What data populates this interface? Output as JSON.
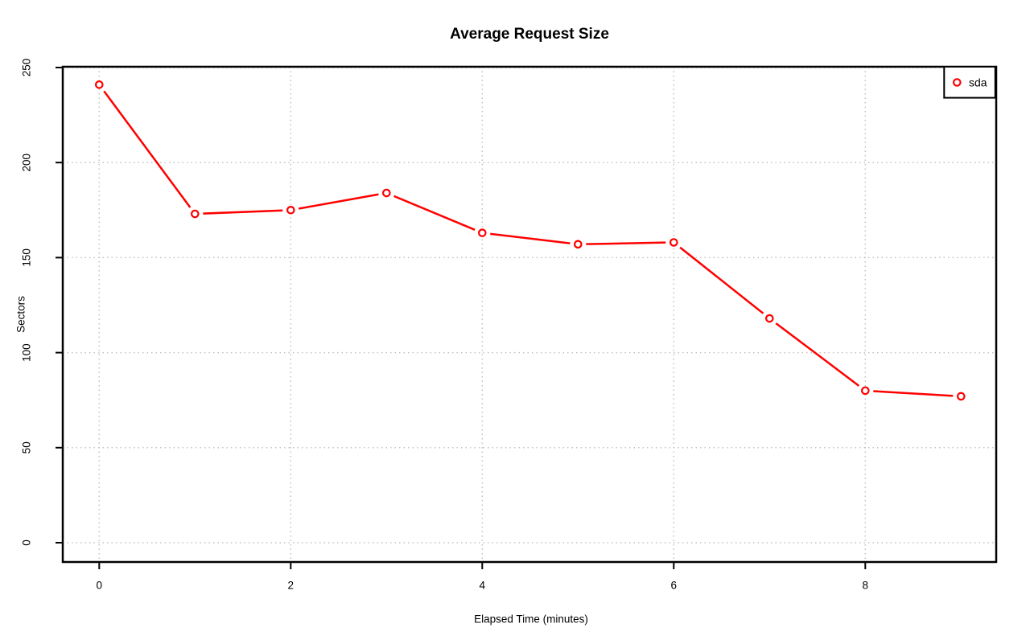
{
  "page": {
    "background_color": "#ffffff",
    "text_color": "#000000"
  },
  "chart_data": {
    "type": "line",
    "title": "Average Request Size",
    "xlabel": "Elapsed Time (minutes)",
    "ylabel": "Sectors",
    "x": [
      0,
      1,
      2,
      3,
      4,
      5,
      6,
      7,
      8,
      9
    ],
    "series": [
      {
        "name": "sda",
        "color": "#ff0000",
        "marker": "open-circle",
        "values": [
          241,
          173,
          175,
          184,
          163,
          157,
          158,
          118,
          80,
          77
        ]
      }
    ],
    "x_ticks": [
      0,
      2,
      4,
      6,
      8
    ],
    "y_ticks": [
      0,
      50,
      100,
      150,
      200,
      250
    ],
    "xlim": [
      -0.38,
      9.37
    ],
    "ylim": [
      -10,
      250.4
    ],
    "grid": true,
    "grid_color": "#c2c2c2",
    "frame_color": "#000000",
    "legend": {
      "position": "topright",
      "entries": [
        "sda"
      ]
    }
  }
}
